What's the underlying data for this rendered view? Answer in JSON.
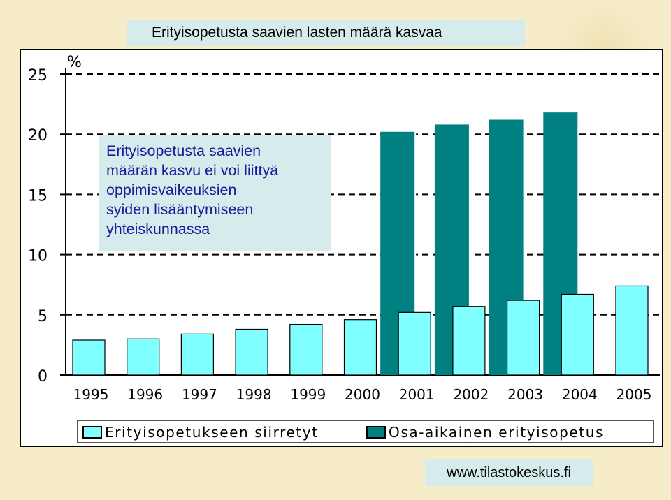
{
  "title": "Erityisopetusta saavien lasten määrä kasvaa",
  "callout_lines": [
    "Erityisopetusta saavien",
    "määrän kasvu ei voi liittyä",
    "oppimisvaikeuksien",
    "syiden lisääntymiseen",
    "yhteiskunnassa"
  ],
  "source": "www.tilastokeskus.fi",
  "chart_data": {
    "type": "bar",
    "ylabel": "%",
    "ylim": [
      0,
      25
    ],
    "yticks": [
      "0",
      "5",
      "10",
      "15",
      "20",
      "25"
    ],
    "ytick_values": [
      0,
      5,
      10,
      15,
      20,
      25
    ],
    "grid": "dashed horizontal",
    "categories": [
      "1995",
      "1996",
      "1997",
      "1998",
      "1999",
      "2000",
      "2001",
      "2002",
      "2003",
      "2004",
      "2005"
    ],
    "series": [
      {
        "name": "Erityisopetukseen siirretyt",
        "color": "#7fffff",
        "values": [
          2.9,
          3.0,
          3.4,
          3.8,
          4.2,
          4.6,
          5.2,
          5.7,
          6.2,
          6.7,
          7.4
        ]
      },
      {
        "name": "Osa-aikainen erityisopetus",
        "color": "#008080",
        "values": [
          null,
          null,
          null,
          null,
          null,
          null,
          20.2,
          20.8,
          21.2,
          21.8,
          null
        ]
      }
    ],
    "legend_position": "bottom"
  }
}
